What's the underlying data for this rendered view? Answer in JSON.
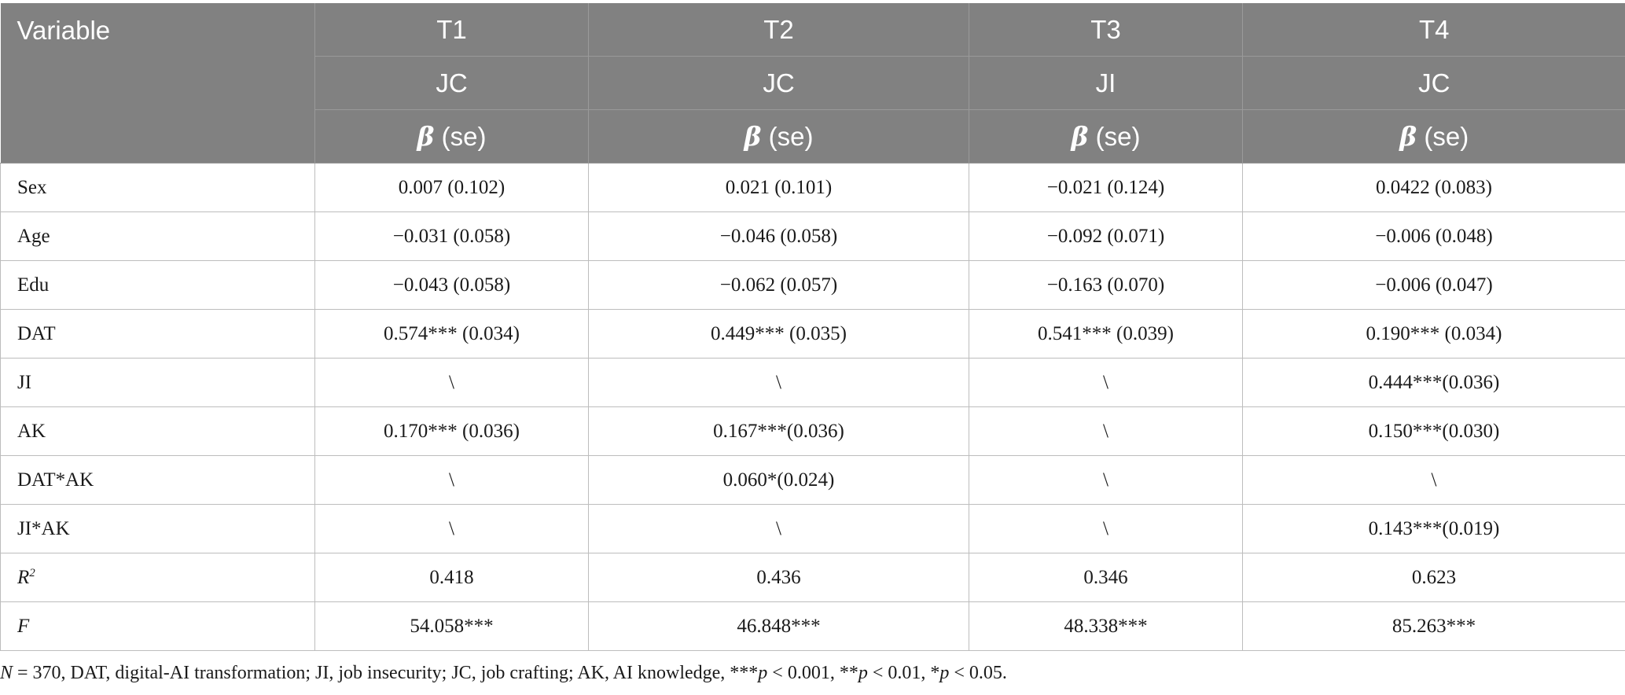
{
  "header": {
    "variable_label": "Variable",
    "columns": [
      {
        "model": "T1",
        "outcome": "JC",
        "beta_symbol": "β",
        "stat": "(se)"
      },
      {
        "model": "T2",
        "outcome": "JC",
        "beta_symbol": "β",
        "stat": "(se)"
      },
      {
        "model": "T3",
        "outcome": "JI",
        "beta_symbol": "β",
        "stat": "(se)"
      },
      {
        "model": "T4",
        "outcome": "JC",
        "beta_symbol": "β",
        "stat": "(se)"
      }
    ]
  },
  "rows": [
    {
      "label": "Sex",
      "cells": [
        "0.007 (0.102)",
        "0.021 (0.101)",
        "−0.021 (0.124)",
        "0.0422 (0.083)"
      ]
    },
    {
      "label": "Age",
      "cells": [
        "−0.031 (0.058)",
        "−0.046 (0.058)",
        "−0.092 (0.071)",
        "−0.006 (0.048)"
      ]
    },
    {
      "label": "Edu",
      "cells": [
        "−0.043 (0.058)",
        "−0.062 (0.057)",
        "−0.163 (0.070)",
        "−0.006 (0.047)"
      ]
    },
    {
      "label": "DAT",
      "cells": [
        "0.574*** (0.034)",
        "0.449*** (0.035)",
        "0.541*** (0.039)",
        "0.190*** (0.034)"
      ]
    },
    {
      "label": "JI",
      "cells": [
        "\\",
        "\\",
        "\\",
        "0.444***(0.036)"
      ]
    },
    {
      "label": "AK",
      "cells": [
        "0.170*** (0.036)",
        "0.167***(0.036)",
        "\\",
        "0.150***(0.030)"
      ]
    },
    {
      "label": "DAT*AK",
      "cells": [
        "\\",
        "0.060*(0.024)",
        "\\",
        "\\"
      ]
    },
    {
      "label": "JI*AK",
      "cells": [
        "\\",
        "\\",
        "\\",
        "0.143***(0.019)"
      ]
    }
  ],
  "r2_row": {
    "label_base": "R",
    "label_sup": "2",
    "cells": [
      "0.418",
      "0.436",
      "0.346",
      "0.623"
    ]
  },
  "f_row": {
    "label": "F",
    "cells": [
      "54.058***",
      "46.848***",
      "48.338***",
      "85.263***"
    ]
  },
  "footnote": {
    "n_symbol": "N",
    "text_1": " = 370, DAT, digital-AI transformation; JI, job insecurity; JC, job crafting; AK, AI knowledge, ***",
    "p1": "p",
    "text_2": " < 0.001, **",
    "p2": "p",
    "text_3": " < 0.01, *",
    "p3": "p",
    "text_4": " < 0.05."
  }
}
